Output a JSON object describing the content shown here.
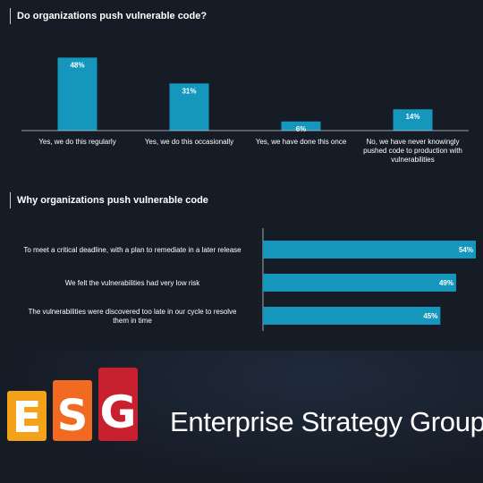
{
  "chart_data": [
    {
      "type": "bar",
      "orientation": "vertical",
      "title": "Do organizations push vulnerable code?",
      "categories": [
        "Yes, we do this regularly",
        "Yes, we do this occasionally",
        "Yes, we have done this once",
        "No, we have never knowingly pushed code to production with vulnerabilities"
      ],
      "category_lines": [
        [
          "Yes, we do this regularly"
        ],
        [
          "Yes, we do this occasionally"
        ],
        [
          "Yes, we have done this once"
        ],
        [
          "No, we have never knowingly",
          "pushed code to production with",
          "vulnerabilities"
        ]
      ],
      "values": [
        48,
        31,
        6,
        14
      ],
      "value_labels": [
        "48%",
        "31%",
        "6%",
        "14%"
      ],
      "ylim": [
        0,
        50
      ],
      "grid": false,
      "bar_color": "#1596bd"
    },
    {
      "type": "bar",
      "orientation": "horizontal",
      "title": "Why organizations push vulnerable code",
      "categories": [
        "To meet a critical deadline, with a plan to remediate in a later release",
        "We felt the vulnerabilities had very low risk",
        "The vulnerabilities were discovered too late in our cycle to resolve them in time"
      ],
      "category_lines": [
        [
          "To meet a critical deadline, with a plan to remediate in a later release"
        ],
        [
          "We felt the vulnerabilities had very low risk"
        ],
        [
          "The vulnerabilities were discovered too late in our cycle to resolve",
          "them in time"
        ]
      ],
      "values": [
        54,
        49,
        45
      ],
      "value_labels": [
        "54%",
        "49%",
        "45%"
      ],
      "xlim": [
        0,
        54
      ],
      "grid": false,
      "bar_color": "#1596bd"
    }
  ],
  "logo": {
    "letters": [
      "E",
      "S",
      "G"
    ],
    "colors": [
      "#f5a21b",
      "#f26a21",
      "#c8202f"
    ],
    "name": "Enterprise Strategy Group"
  }
}
